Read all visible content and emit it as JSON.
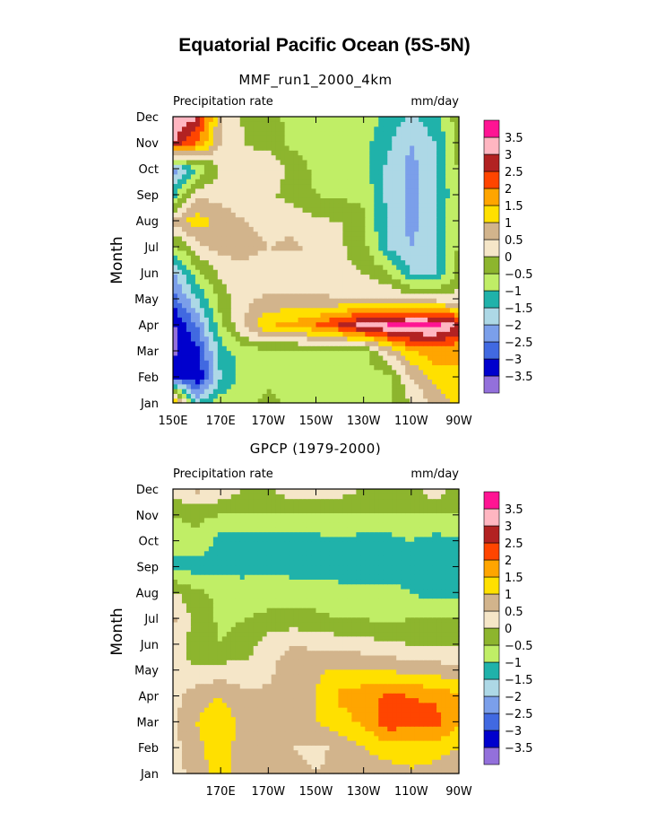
{
  "figure": {
    "title": "Equatorial Pacific Ocean (5S-5N)",
    "ylabel": "Month"
  },
  "colors": {
    "levels": [
      -3.5,
      -3,
      -2.5,
      -2,
      -1.5,
      -1,
      -0.5,
      0,
      0.5,
      1,
      1.5,
      2,
      2.5,
      3,
      3.5
    ],
    "legend_labels": [
      "−3.5",
      "−3",
      "−2.5",
      "−2",
      "−1.5",
      "−1",
      "−0.5",
      "0",
      "0.5",
      "1",
      "1.5",
      "2",
      "2.5",
      "3",
      "3.5"
    ],
    "fills": [
      "#9370DB",
      "#0000CD",
      "#4169E1",
      "#7B9FEA",
      "#ADD8E6",
      "#20B2AA",
      "#C0EE66",
      "#8DB52E",
      "#F5E6C8",
      "#D2B48C",
      "#FFE000",
      "#FFA500",
      "#FF4500",
      "#B22222",
      "#FFB6C1",
      "#FF1493"
    ]
  },
  "chart_data": [
    {
      "type": "heatmap",
      "title": "MMF_run1_2000_4km",
      "left_label": "Precipitation rate",
      "right_label": "mm/day",
      "ylabel": "Month",
      "x_ticklabels": [
        "150E",
        "170E",
        "170W",
        "150W",
        "130W",
        "110W",
        "90W"
      ],
      "y_ticklabels": [
        "Jan",
        "Feb",
        "Mar",
        "Apr",
        "May",
        "Jun",
        "Jul",
        "Aug",
        "Sep",
        "Oct",
        "Nov",
        "Dec"
      ],
      "x": [
        150,
        160,
        170,
        180,
        190,
        200,
        210,
        220,
        230,
        240,
        250,
        260,
        270
      ],
      "y": [
        "Jan",
        "Feb",
        "Mar",
        "Apr",
        "May",
        "Jun",
        "Jul",
        "Aug",
        "Sep",
        "Oct",
        "Nov",
        "Dec"
      ],
      "z": [
        [
          2.0,
          -1.5,
          -0.7,
          -0.7,
          -0.3,
          -0.7,
          -0.7,
          -0.7,
          -0.7,
          -0.7,
          0.0,
          0.6,
          1.2
        ],
        [
          -3.0,
          -3.5,
          -1.5,
          -0.7,
          -0.7,
          -0.7,
          -0.7,
          -0.7,
          -0.7,
          -0.7,
          0.5,
          1.2,
          1.5
        ],
        [
          -3.6,
          -3.2,
          -1.3,
          -0.7,
          -0.7,
          -0.7,
          -0.7,
          -0.7,
          -0.7,
          0.5,
          1.5,
          1.8,
          1.5
        ],
        [
          -3.6,
          -2.5,
          -0.6,
          0.5,
          1.5,
          1.6,
          2.0,
          2.6,
          3.3,
          3.6,
          3.7,
          3.7,
          3.0
        ],
        [
          -2.8,
          -1.5,
          -0.3,
          0.4,
          0.6,
          0.6,
          0.6,
          0.5,
          0.5,
          0.5,
          0.4,
          0.3,
          0.2
        ],
        [
          -2.2,
          -0.7,
          0.1,
          0.2,
          0.1,
          0.1,
          0.2,
          0.1,
          0.0,
          -0.4,
          -1.5,
          -1.5,
          -0.3
        ],
        [
          -0.7,
          0.3,
          0.7,
          0.8,
          0.5,
          0.6,
          0.4,
          0.1,
          -0.3,
          -1.5,
          -2.0,
          -1.6,
          -0.4
        ],
        [
          0.7,
          1.3,
          0.8,
          0.5,
          0.3,
          0.4,
          0.1,
          0.0,
          -0.4,
          -1.6,
          -2.2,
          -1.6,
          -0.4
        ],
        [
          -1.2,
          0.4,
          0.3,
          0.2,
          0.1,
          -0.2,
          -0.5,
          -0.6,
          -0.6,
          -1.6,
          -2.2,
          -1.7,
          -0.4
        ],
        [
          -2.4,
          -1.0,
          0.0,
          0.3,
          0.4,
          -0.2,
          -0.6,
          -0.7,
          -0.8,
          -1.6,
          -2.2,
          -1.6,
          -0.4
        ],
        [
          3.0,
          2.0,
          0.5,
          0.0,
          -0.2,
          -0.6,
          -0.7,
          -0.7,
          -0.8,
          -1.4,
          -2.0,
          -1.5,
          -0.3
        ],
        [
          3.6,
          3.0,
          0.6,
          -0.1,
          -0.4,
          -0.6,
          -0.7,
          -0.7,
          -0.6,
          -1.2,
          -1.6,
          -1.2,
          -0.2
        ]
      ]
    },
    {
      "type": "heatmap",
      "title": "GPCP (1979-2000)",
      "left_label": "Precipitation rate",
      "right_label": "mm/day",
      "ylabel": "Month",
      "x_ticklabels": [
        "170E",
        "170W",
        "150W",
        "130W",
        "110W",
        "90W"
      ],
      "y_ticklabels": [
        "Jan",
        "Feb",
        "Mar",
        "Apr",
        "May",
        "Jun",
        "Jul",
        "Aug",
        "Sep",
        "Oct",
        "Nov",
        "Dec"
      ],
      "x": [
        150,
        160,
        170,
        180,
        190,
        200,
        210,
        220,
        230,
        240,
        250,
        260,
        270
      ],
      "y": [
        "Jan",
        "Feb",
        "Mar",
        "Apr",
        "May",
        "Jun",
        "Jul",
        "Aug",
        "Sep",
        "Oct",
        "Nov",
        "Dec"
      ],
      "z": [
        [
          0.2,
          0.8,
          1.2,
          0.7,
          0.5,
          0.7,
          0.5,
          0.6,
          0.8,
          0.8,
          0.9,
          0.8,
          0.6
        ],
        [
          0.3,
          0.9,
          1.2,
          0.8,
          0.5,
          0.5,
          0.4,
          0.6,
          1.0,
          1.2,
          1.3,
          1.2,
          1.0
        ],
        [
          0.4,
          1.0,
          1.3,
          0.8,
          0.5,
          0.6,
          1.0,
          1.3,
          1.6,
          2.3,
          2.2,
          2.2,
          1.6
        ],
        [
          0.3,
          0.8,
          1.0,
          0.6,
          0.6,
          0.8,
          1.0,
          1.6,
          1.8,
          2.1,
          2.0,
          1.9,
          1.6
        ],
        [
          0.0,
          0.1,
          0.2,
          0.2,
          0.4,
          0.8,
          0.9,
          1.1,
          1.1,
          1.0,
          0.8,
          0.8,
          0.6
        ],
        [
          0.3,
          -0.3,
          -0.5,
          -0.3,
          0.3,
          0.5,
          0.4,
          0.3,
          0.2,
          0.1,
          0.0,
          0.0,
          -0.1
        ],
        [
          0.6,
          -0.2,
          -0.6,
          -0.5,
          -0.4,
          -0.3,
          -0.4,
          -0.5,
          -0.5,
          -0.6,
          -0.5,
          -0.4,
          -0.5
        ],
        [
          0.1,
          -0.4,
          -0.6,
          -0.7,
          -0.7,
          -0.7,
          -0.7,
          -0.8,
          -0.8,
          -0.8,
          -1.0,
          -1.2,
          -1.1
        ],
        [
          -1.2,
          -1.2,
          -1.2,
          -1.2,
          -1.1,
          -1.2,
          -1.2,
          -1.3,
          -1.3,
          -1.3,
          -1.2,
          -1.2,
          -1.3
        ],
        [
          -0.7,
          -0.6,
          -1.2,
          -1.2,
          -1.2,
          -1.2,
          -1.2,
          -1.1,
          -1.2,
          -1.2,
          -1.0,
          -1.2,
          -1.1
        ],
        [
          -0.5,
          -0.4,
          -0.5,
          -0.5,
          -0.5,
          -0.5,
          -0.5,
          -0.5,
          -0.5,
          -0.5,
          -0.5,
          -0.5,
          -0.5
        ],
        [
          0.3,
          0.6,
          0.4,
          0.0,
          -0.1,
          0.3,
          0.3,
          0.2,
          0.0,
          0.0,
          -0.2,
          0.3,
          -0.3
        ]
      ]
    }
  ]
}
